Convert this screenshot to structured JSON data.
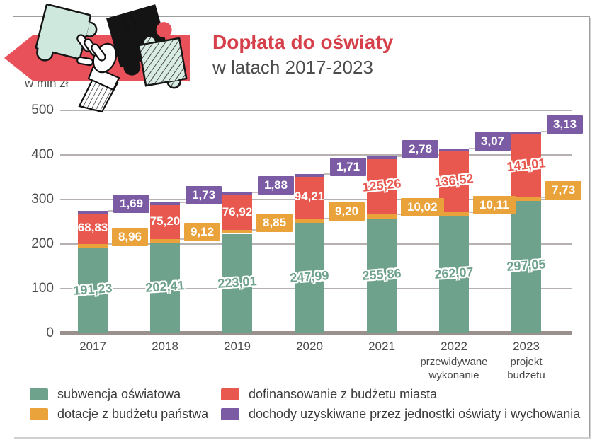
{
  "header": {
    "title": "Dopłata do oświaty",
    "subtitle": "w latach 2017-2023",
    "title_color": "#d6404a"
  },
  "chart_data": {
    "type": "bar",
    "stacked": true,
    "title": "Dopłata do oświaty w latach 2017-2023",
    "unit_label": "w mln zł",
    "ylim": [
      0,
      500
    ],
    "yticks": [
      0,
      100,
      200,
      300,
      400,
      500
    ],
    "grid": true,
    "grid_color": "#b7b1b1",
    "axis_color": "#9a918c",
    "categories": [
      {
        "year": "2017",
        "sublabel": ""
      },
      {
        "year": "2018",
        "sublabel": ""
      },
      {
        "year": "2019",
        "sublabel": ""
      },
      {
        "year": "2020",
        "sublabel": ""
      },
      {
        "year": "2021",
        "sublabel": ""
      },
      {
        "year": "2022",
        "sublabel": "przewidywane wykonanie"
      },
      {
        "year": "2023",
        "sublabel": "projekt budżetu"
      }
    ],
    "series": [
      {
        "name": "subwencja oświatowa",
        "color": "#6fa28d",
        "values": [
          191.23,
          202.41,
          223.01,
          247.99,
          255.86,
          262.07,
          297.05
        ],
        "labels": [
          "191,23",
          "202,41",
          "223,01",
          "247,99",
          "255,86",
          "262,07",
          "297,05"
        ]
      },
      {
        "name": "dotacje z budżetu państwa",
        "color": "#eaa33b",
        "values": [
          8.96,
          9.12,
          8.85,
          9.2,
          10.02,
          10.11,
          7.73
        ],
        "labels": [
          "8,96",
          "9,12",
          "8,85",
          "9,20",
          "10,02",
          "10,11",
          "7,73"
        ]
      },
      {
        "name": "dofinansowanie z budżetu miasta",
        "color": "#e8584f",
        "values": [
          68.83,
          75.2,
          76.92,
          94.21,
          125.26,
          136.52,
          141.01
        ],
        "labels": [
          "68,83",
          "75,20",
          "76,92",
          "94,21",
          "125,26",
          "136,52",
          "141,01"
        ]
      },
      {
        "name": "dochody uzyskiwane przez jednostki oświaty i wychowania",
        "color": "#7b5ba3",
        "values": [
          1.69,
          1.73,
          1.88,
          1.71,
          2.78,
          3.07,
          3.13
        ],
        "labels": [
          "1,69",
          "1,73",
          "1,88",
          "1,71",
          "2,78",
          "3,07",
          "3,13"
        ]
      }
    ],
    "legend_position": "bottom"
  }
}
